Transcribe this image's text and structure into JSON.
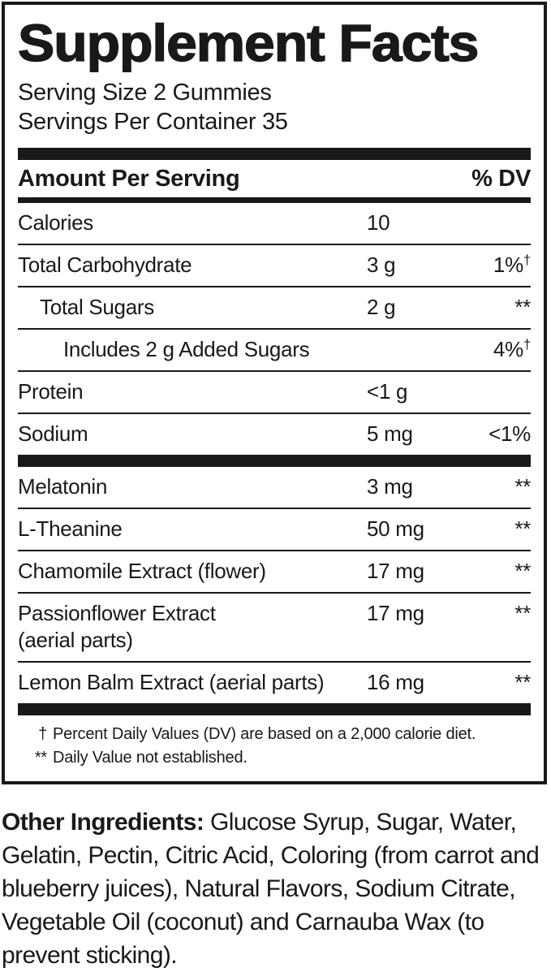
{
  "label": {
    "title": "Supplement Facts",
    "serving": {
      "size": "Serving Size 2 Gummies",
      "per_container": "Servings Per Container 35"
    },
    "columns": {
      "left": "Amount Per Serving",
      "right": "% DV"
    },
    "rows": [
      {
        "name": "Calories",
        "amount": "10",
        "dv": "",
        "indent": 0,
        "sep": "none"
      },
      {
        "name": "Total Carbohydrate",
        "amount": "3 g",
        "dv": "1%",
        "dv_sup": "†",
        "indent": 0,
        "sep": "hair"
      },
      {
        "name": "Total Sugars",
        "amount": "2 g",
        "dv": "**",
        "indent": 1,
        "sep": "hair"
      },
      {
        "name": "Includes 2 g Added Sugars",
        "amount": "",
        "dv": "4%",
        "dv_sup": "†",
        "indent": 2,
        "sep": "hair"
      },
      {
        "name": "Protein",
        "amount": "<1 g",
        "dv": "",
        "indent": 0,
        "sep": "hair"
      },
      {
        "name": "Sodium",
        "amount": "5 mg",
        "dv": "<1%",
        "indent": 0,
        "sep": "hair"
      },
      {
        "name": "Melatonin",
        "amount": "3 mg",
        "dv": "**",
        "indent": 0,
        "sep": "thick"
      },
      {
        "name": "L-Theanine",
        "amount": "50 mg",
        "dv": "**",
        "indent": 0,
        "sep": "hair"
      },
      {
        "name": "Chamomile Extract (flower)",
        "amount": "17 mg",
        "dv": "**",
        "indent": 0,
        "sep": "hair"
      },
      {
        "name": "Passionflower Extract",
        "name_line2": "(aerial parts)",
        "amount": "17 mg",
        "dv": "**",
        "indent": 0,
        "sep": "hair"
      },
      {
        "name": "Lemon Balm Extract (aerial parts)",
        "amount": "16 mg",
        "dv": "**",
        "indent": 0,
        "sep": "hair"
      }
    ],
    "footnotes": [
      {
        "symbol": "†",
        "text": "Percent Daily Values (DV) are based on a 2,000 calorie diet."
      },
      {
        "symbol": "**",
        "text": "Daily Value not established."
      }
    ]
  },
  "other_ingredients": {
    "label": "Other Ingredients:",
    "text": "Glucose Syrup, Sugar, Water, Gelatin, Pectin, Citric Acid, Coloring (from carrot and blueberry juices), Natural Flavors, Sodium Citrate, Vegetable Oil (coconut) and Carnauba Wax (to prevent sticking)."
  },
  "colors": {
    "ink": "#1b1818",
    "background": "#ffffff"
  }
}
